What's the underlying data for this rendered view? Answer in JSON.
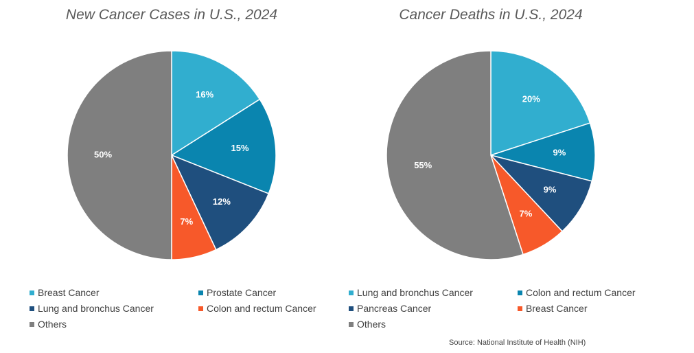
{
  "source": "Source: National Institute of Health (NIH)",
  "chart_data": [
    {
      "type": "pie",
      "title": "New Cancer Cases in U.S., 2024",
      "slices": [
        {
          "name": "Breast Cancer",
          "value": 16,
          "label": "16%",
          "color": "#31AECF"
        },
        {
          "name": "Prostate Cancer",
          "value": 15,
          "label": "15%",
          "color": "#0A85AF"
        },
        {
          "name": "Lung and bronchus Cancer",
          "value": 12,
          "label": "12%",
          "color": "#1F4F7E"
        },
        {
          "name": "Colon and rectum Cancer",
          "value": 7,
          "label": "7%",
          "color": "#F7592A"
        },
        {
          "name": "Others",
          "value": 50,
          "label": "50%",
          "color": "#7F7F7F"
        }
      ]
    },
    {
      "type": "pie",
      "title": "Cancer Deaths in U.S., 2024",
      "slices": [
        {
          "name": "Lung and bronchus Cancer",
          "value": 20,
          "label": "20%",
          "color": "#31AECF"
        },
        {
          "name": "Colon and rectum Cancer",
          "value": 9,
          "label": "9%",
          "color": "#0A85AF"
        },
        {
          "name": "Pancreas Cancer",
          "value": 9,
          "label": "9%",
          "color": "#1F4F7E"
        },
        {
          "name": "Breast Cancer",
          "value": 7,
          "label": "7%",
          "color": "#F7592A"
        },
        {
          "name": "Others",
          "value": 55,
          "label": "55%",
          "color": "#7F7F7F"
        }
      ]
    }
  ]
}
